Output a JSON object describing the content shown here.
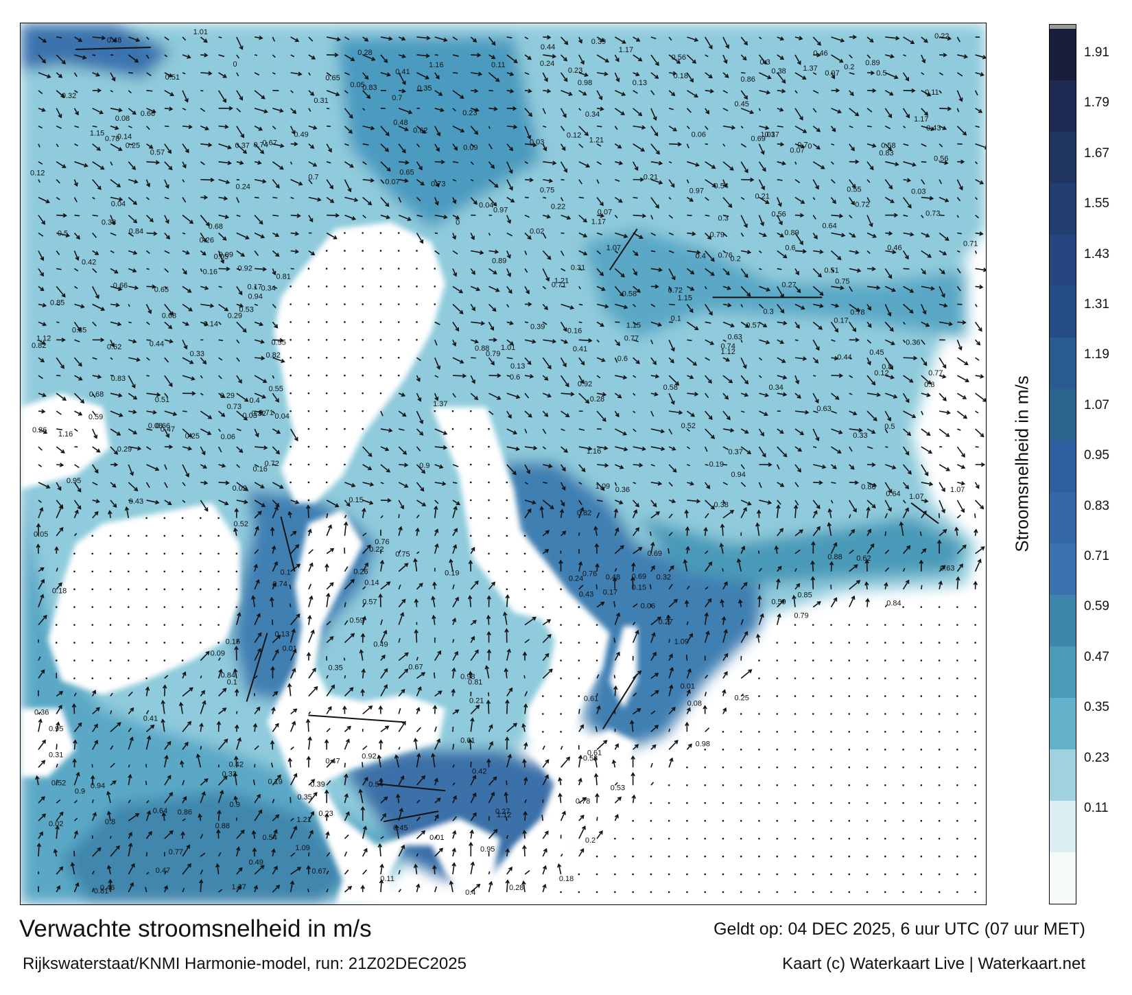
{
  "title": "Verwachte stroomsnelheid in m/s",
  "subtitle": "Rijkswaterstaat/KNMI Harmonie-model, run: 21Z02DEC2025",
  "valid_time": "Geldt op: 04 DEC 2025, 6 uur UTC (07 uur MET)",
  "credit": "Kaart (c) Waterkaart Live | Waterkaart.net",
  "legend": {
    "title": "Stroomsnelheid in m/s",
    "ticks": [
      "1.91",
      "1.79",
      "1.67",
      "1.55",
      "1.43",
      "1.31",
      "1.19",
      "1.07",
      "0.95",
      "0.83",
      "0.71",
      "0.59",
      "0.47",
      "0.35",
      "0.23",
      "0.11"
    ],
    "colors": [
      "#1b1d3d",
      "#1f2a52",
      "#223664",
      "#233f72",
      "#25467f",
      "#274d89",
      "#2a5b8e",
      "#2c6490",
      "#2f5f9e",
      "#3468a8",
      "#3a73ae",
      "#3f86ad",
      "#4a9ab8",
      "#62b0c9",
      "#9fd1de",
      "#ddeef3",
      "#f5fafb"
    ],
    "cap_color": "#9a9a9a"
  },
  "map_labels": [
    {
      "t": "0.27"
    },
    {
      "t": "0.16"
    },
    {
      "t": "0.15"
    },
    {
      "t": "0.19"
    },
    {
      "t": "0.09"
    },
    {
      "t": "0.11"
    },
    {
      "t": "0.2"
    },
    {
      "t": "0.18"
    },
    {
      "t": "0.22"
    },
    {
      "t": "0.26"
    },
    {
      "t": "0.25"
    },
    {
      "t": "0.23"
    },
    {
      "t": "0.21"
    },
    {
      "t": "0.31"
    },
    {
      "t": "0.28"
    },
    {
      "t": "0.14"
    },
    {
      "t": "0.1"
    },
    {
      "t": "0.08"
    },
    {
      "t": "0.07"
    },
    {
      "t": "0.12"
    },
    {
      "t": "0.3"
    },
    {
      "t": "0.29"
    },
    {
      "t": "0.46"
    },
    {
      "t": "0.49"
    },
    {
      "t": "0.43"
    },
    {
      "t": "0.56"
    },
    {
      "t": "0.51"
    },
    {
      "t": "0.54"
    },
    {
      "t": "0.37"
    },
    {
      "t": "0.35"
    },
    {
      "t": "0.4"
    },
    {
      "t": "0.44"
    },
    {
      "t": "0.32"
    },
    {
      "t": "0.33"
    },
    {
      "t": "0.17"
    },
    {
      "t": "0.13"
    },
    {
      "t": "0.06"
    },
    {
      "t": "0.05"
    },
    {
      "t": "0.04"
    },
    {
      "t": "0.03"
    },
    {
      "t": "0.02"
    },
    {
      "t": "0.01"
    },
    {
      "t": "0.24"
    },
    {
      "t": "0.36"
    },
    {
      "t": "0.42"
    },
    {
      "t": "0.41"
    },
    {
      "t": "0.45"
    },
    {
      "t": "0.38"
    },
    {
      "t": "0.39"
    },
    {
      "t": "0.47"
    },
    {
      "t": "0.52"
    },
    {
      "t": "0.55"
    },
    {
      "t": "0.6"
    },
    {
      "t": "0.63"
    },
    {
      "t": "0.64"
    },
    {
      "t": "0.72"
    },
    {
      "t": "0.8"
    },
    {
      "t": "0.85"
    },
    {
      "t": "0.9"
    },
    {
      "t": "0.95"
    },
    {
      "t": "1.07"
    },
    {
      "t": "1.12"
    },
    {
      "t": "1.21"
    },
    {
      "t": "1.09"
    },
    {
      "t": "0.98"
    },
    {
      "t": "0.97"
    },
    {
      "t": "0.77"
    },
    {
      "t": "0.66"
    },
    {
      "t": "0.74"
    },
    {
      "t": "0.83"
    },
    {
      "t": "0.92"
    },
    {
      "t": "0.94"
    },
    {
      "t": "0.73"
    },
    {
      "t": "0.67"
    },
    {
      "t": "0.69"
    },
    {
      "t": "0.65"
    },
    {
      "t": "0.62"
    },
    {
      "t": "0.57"
    },
    {
      "t": "0.59"
    },
    {
      "t": "0.79"
    },
    {
      "t": "0.76"
    },
    {
      "t": "0.68"
    },
    {
      "t": "0.7"
    },
    {
      "t": "0.71"
    },
    {
      "t": "0.53"
    },
    {
      "t": "0.48"
    },
    {
      "t": "0.34"
    },
    {
      "t": "0.5"
    },
    {
      "t": "1.01"
    },
    {
      "t": "1.16"
    },
    {
      "t": "1.15"
    },
    {
      "t": "1.37"
    },
    {
      "t": "1.17"
    },
    {
      "t": "0.78"
    },
    {
      "t": "0.61"
    },
    {
      "t": "0.58"
    },
    {
      "t": "0.86"
    },
    {
      "t": "0.84"
    },
    {
      "t": "0.82"
    },
    {
      "t": "0.89"
    },
    {
      "t": "0.88"
    },
    {
      "t": "0.81"
    },
    {
      "t": "0.75"
    },
    {
      "t": "0"
    }
  ]
}
